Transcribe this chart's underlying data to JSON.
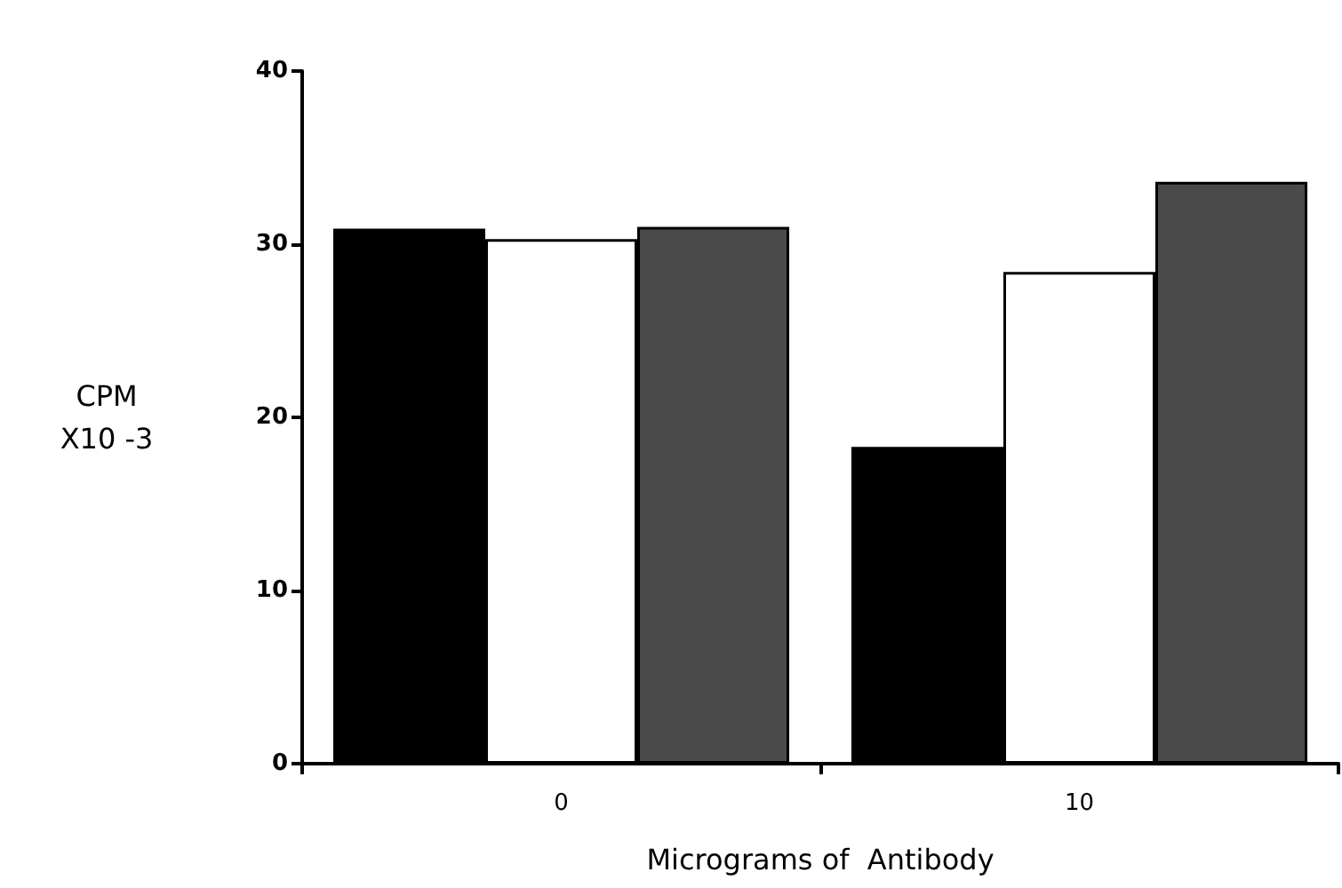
{
  "chart_data": {
    "type": "bar",
    "xlabel": "Micrograms of  Antibody",
    "ylabel": "CPM\nX10 -3",
    "categories": [
      "0",
      "10"
    ],
    "series": [
      {
        "color": "#000000",
        "values": [
          30.9,
          18.3
        ]
      },
      {
        "color": "#ffffff",
        "values": [
          30.3,
          28.4
        ]
      },
      {
        "color": "#4a4a4a",
        "values": [
          31.0,
          33.6
        ]
      }
    ],
    "ylim": [
      0,
      40
    ],
    "yticks": [
      0,
      10,
      20,
      30,
      40
    ],
    "grid": false
  }
}
